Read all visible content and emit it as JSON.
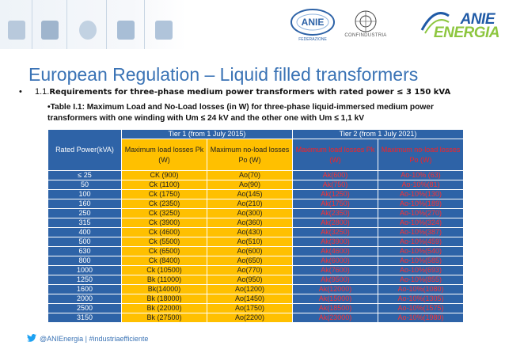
{
  "header": {
    "anie_logo_text": "ANIE",
    "anie_logo_sub": "FEDERAZIONE",
    "confindustria_text": "CONFINDUSTRIA",
    "energia_top": "ANIE",
    "energia_bottom": "ENERGIA"
  },
  "slide": {
    "title": "European Regulation – Liquid filled transformers",
    "bullet_char": "•",
    "req_number": "1.1.",
    "req_text": "Requirements for three-phase medium power transformers with rated power ≤ 3 150 kVA",
    "caption": "•Table I.1: Maximum Load and No-Load losses (in W) for three-phase liquid-immersed medium power transformers with one winding with Um ≤ 24 kV and the other one with Um ≤ 1,1 kV"
  },
  "table": {
    "tier1": "Tier 1 (from 1 July 2015)",
    "tier2": "Tier 2 (from 1 July 2021)",
    "col_rated": "Rated Power(kVA)",
    "col_t1_load": "Maximum load losses Pk (W)",
    "col_t1_noload": "Maximum no-load losses Po (W)",
    "col_t2_load": "Maximum load losses Pk (W)",
    "col_t2_noload": "Maximum no-load losses Po (W)",
    "rows": [
      [
        "≤ 25",
        "CK (900)",
        "Ao(70)",
        "Ak(600)",
        "Ao-10% (63)"
      ],
      [
        "50",
        "Ck (1100)",
        "Ao(90)",
        "Ak(750)",
        "Ao-10%(81)"
      ],
      [
        "100",
        "Ck (1750)",
        "Ao(145)",
        "Ak(1250)",
        "Ao-10%(130)"
      ],
      [
        "160",
        "Ck (2350)",
        "Ao(210)",
        "Ak(1750)",
        "Ao-10%(189)"
      ],
      [
        "250",
        "Ck (3250)",
        "Ao(300)",
        "Ak(2350)",
        "Ao-10%(270)"
      ],
      [
        "315",
        "Ck (3900)",
        "Ao(360)",
        "Ak(2800)",
        "Ao-10%(324)"
      ],
      [
        "400",
        "Ck (4600)",
        "Ao(430)",
        "Ak(3250)",
        "Ao-10%(387)"
      ],
      [
        "500",
        "Ck (5500)",
        "Ao(510)",
        "Ak(3900)",
        "Ao-10%(459)"
      ],
      [
        "630",
        "Ck (6500)",
        "Ao(600)",
        "Ak(4600)",
        "Ao-10%(540)"
      ],
      [
        "800",
        "Ck (8400)",
        "Ao(650)",
        "Ak(6000)",
        "Ao-10%(585)"
      ],
      [
        "1000",
        "Ck (10500)",
        "Ao(770)",
        "Ak(7600)",
        "Ao-10%(693)"
      ],
      [
        "1250",
        "Bk (11000)",
        "Ao(950)",
        "Ak(9500)",
        "Ao-10%(855)"
      ],
      [
        "1600",
        "Bk(14000)",
        "Ao(1200)",
        "Ak(12000)",
        "Ao-10%(1080)"
      ],
      [
        "2000",
        "Bk (18000)",
        "Ao(1450)",
        "Ak(15000)",
        "Ao-10%(1305)"
      ],
      [
        "2500",
        "Bk (22000)",
        "Ao(1750)",
        "Ak(18500)",
        "Ao-10%(1575)"
      ],
      [
        "3150",
        "Bk (27500)",
        "Ao(2200)",
        "Ak(23000)",
        "Ao-10%(1980)"
      ]
    ]
  },
  "footer": {
    "text": "@ANIEnergia | #industriaefficiente"
  },
  "colors": {
    "title_blue": "#3a73b5",
    "table_blue": "#2e63a7",
    "gold": "#ffc000",
    "tier2_red": "#ff3030"
  }
}
